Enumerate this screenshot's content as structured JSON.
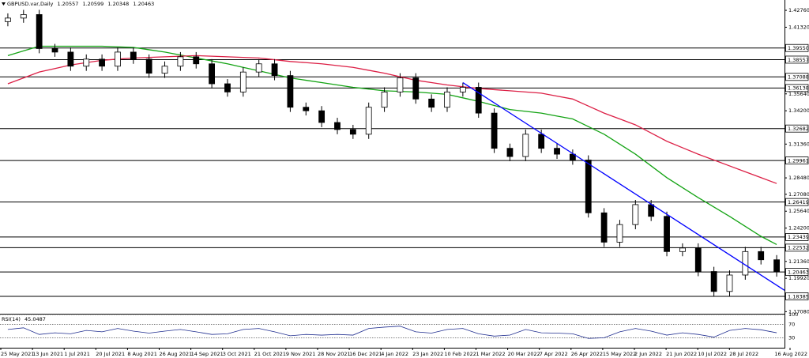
{
  "chart_data": {
    "type": "candlestick",
    "title": "GBPUSD.var,Daily",
    "quote": [
      "1.20557",
      "1.20599",
      "1.20348",
      "1.20463"
    ],
    "open": [
      1.418,
      1.421,
      1.424,
      1.395,
      1.392,
      1.38,
      1.386,
      1.38,
      1.392,
      1.386,
      1.374,
      1.38,
      1.388,
      1.382,
      1.365,
      1.358,
      1.375,
      1.382,
      1.372,
      1.345,
      1.342,
      1.332,
      1.326,
      1.322,
      1.345,
      1.358,
      1.37,
      1.352,
      1.345,
      1.358,
      1.362,
      1.34,
      1.31,
      1.303,
      1.322,
      1.31,
      1.305,
      1.3,
      1.255,
      1.23,
      1.245,
      1.262,
      1.252,
      1.222,
      1.225,
      1.205,
      1.188,
      1.202,
      1.222,
      1.215
    ],
    "high": [
      1.425,
      1.428,
      1.428,
      1.399,
      1.396,
      1.39,
      1.39,
      1.396,
      1.396,
      1.39,
      1.384,
      1.392,
      1.392,
      1.386,
      1.369,
      1.379,
      1.386,
      1.386,
      1.376,
      1.349,
      1.346,
      1.336,
      1.33,
      1.349,
      1.362,
      1.374,
      1.374,
      1.356,
      1.362,
      1.366,
      1.366,
      1.344,
      1.314,
      1.326,
      1.326,
      1.314,
      1.309,
      1.304,
      1.259,
      1.249,
      1.266,
      1.266,
      1.256,
      1.229,
      1.229,
      1.209,
      1.206,
      1.226,
      1.226,
      1.219
    ],
    "low": [
      1.414,
      1.417,
      1.391,
      1.388,
      1.376,
      1.376,
      1.376,
      1.376,
      1.382,
      1.37,
      1.37,
      1.376,
      1.378,
      1.361,
      1.354,
      1.354,
      1.371,
      1.368,
      1.341,
      1.338,
      1.328,
      1.322,
      1.318,
      1.318,
      1.341,
      1.354,
      1.348,
      1.341,
      1.341,
      1.354,
      1.336,
      1.306,
      1.299,
      1.299,
      1.306,
      1.301,
      1.296,
      1.251,
      1.226,
      1.226,
      1.241,
      1.248,
      1.218,
      1.218,
      1.201,
      1.184,
      1.184,
      1.198,
      1.211,
      1.2006
    ],
    "close": [
      1.421,
      1.424,
      1.395,
      1.392,
      1.38,
      1.386,
      1.38,
      1.392,
      1.386,
      1.374,
      1.38,
      1.388,
      1.382,
      1.365,
      1.358,
      1.375,
      1.382,
      1.372,
      1.345,
      1.342,
      1.332,
      1.326,
      1.322,
      1.345,
      1.358,
      1.37,
      1.352,
      1.345,
      1.358,
      1.362,
      1.34,
      1.31,
      1.303,
      1.322,
      1.31,
      1.305,
      1.3,
      1.255,
      1.23,
      1.245,
      1.262,
      1.252,
      1.222,
      1.225,
      1.205,
      1.188,
      1.202,
      1.222,
      1.215,
      1.20463
    ],
    "ylim": [
      1.169,
      1.4364
    ],
    "yticks": [
      {
        "value": 1.4276,
        "label": "1.42760"
      },
      {
        "value": 1.4132,
        "label": "1.41320"
      },
      {
        "value": 1.3564,
        "label": "1.35640"
      },
      {
        "value": 1.342,
        "label": "1.34200"
      },
      {
        "value": 1.3136,
        "label": "1.31360"
      },
      {
        "value": 1.2848,
        "label": "1.28480"
      },
      {
        "value": 1.2708,
        "label": "1.27080"
      },
      {
        "value": 1.2564,
        "label": "1.25640"
      },
      {
        "value": 1.242,
        "label": "1.24200"
      },
      {
        "value": 1.2136,
        "label": "1.21360"
      },
      {
        "value": 1.1992,
        "label": "1.19920"
      },
      {
        "value": 1.1708,
        "label": "1.17080"
      }
    ],
    "levels": [
      {
        "value": 1.3955,
        "label": "1.39550"
      },
      {
        "value": 1.38557,
        "label": "1.38557"
      },
      {
        "value": 1.37088,
        "label": "1.37088"
      },
      {
        "value": 1.36138,
        "label": "1.36138"
      },
      {
        "value": 1.32682,
        "label": "1.32682"
      },
      {
        "value": 1.29961,
        "label": "1.29961"
      },
      {
        "value": 1.26419,
        "label": "1.26419"
      },
      {
        "value": 1.23439,
        "label": "1.23439"
      },
      {
        "value": 1.22532,
        "label": "1.22532"
      },
      {
        "value": 1.20463,
        "label": "1.20463"
      },
      {
        "value": 1.18385,
        "label": "1.18385"
      }
    ],
    "moving_averages": [
      {
        "color": "#13a313",
        "values": [
          1.389,
          1.393,
          1.397,
          1.397,
          1.397,
          1.397,
          1.397,
          1.3965,
          1.396,
          1.394,
          1.392,
          1.3895,
          1.387,
          1.3845,
          1.382,
          1.379,
          1.376,
          1.373,
          1.37,
          1.368,
          1.366,
          1.364,
          1.362,
          1.3605,
          1.359,
          1.3585,
          1.358,
          1.357,
          1.356,
          1.353,
          1.35,
          1.3465,
          1.343,
          1.3415,
          1.34,
          1.3375,
          1.335,
          1.3285,
          1.322,
          1.3135,
          1.305,
          1.295,
          1.285,
          1.2765,
          1.268,
          1.26,
          1.252,
          1.2435,
          1.235,
          1.228
        ]
      },
      {
        "color": "#dc1f45",
        "values": [
          1.365,
          1.37,
          1.375,
          1.378,
          1.381,
          1.383,
          1.385,
          1.386,
          1.387,
          1.3875,
          1.388,
          1.3885,
          1.389,
          1.3885,
          1.388,
          1.3875,
          1.387,
          1.3855,
          1.384,
          1.383,
          1.382,
          1.3805,
          1.379,
          1.3765,
          1.374,
          1.371,
          1.368,
          1.366,
          1.364,
          1.3625,
          1.361,
          1.36,
          1.359,
          1.358,
          1.357,
          1.3545,
          1.352,
          1.346,
          1.34,
          1.335,
          1.33,
          1.323,
          1.316,
          1.3105,
          1.305,
          1.3,
          1.295,
          1.29,
          1.285,
          1.28
        ]
      }
    ],
    "trendline": {
      "color": "#0000ff",
      "values": [
        1.366,
        1.189
      ]
    },
    "rsi": {
      "label": "RSI(14)",
      "color": "#1f2d8f",
      "ylim": [
        0,
        100
      ],
      "yticks": [
        100,
        70,
        30
      ],
      "values": [
        55,
        60,
        40,
        45,
        42,
        52,
        48,
        58,
        50,
        44,
        50,
        55,
        48,
        40,
        42,
        55,
        58,
        48,
        36,
        40,
        38,
        40,
        38,
        58,
        62,
        65,
        48,
        44,
        55,
        58,
        42,
        35,
        38,
        55,
        45,
        44,
        42,
        28,
        30,
        48,
        58,
        50,
        38,
        45,
        40,
        32,
        52,
        58,
        54,
        45.0487
      ]
    },
    "dates": [
      "25 May 2021",
      "13 Jun 2021",
      "1 Jul 2021",
      "20 Jul 2021",
      "8 Aug 2021",
      "26 Aug 2021",
      "14 Sep 2021",
      "3 Oct 2021",
      "21 Oct 2021",
      "9 Nov 2021",
      "28 Nov 2021",
      "16 Dec 2021",
      "4 Jan 2022",
      "23 Jan 2022",
      "10 Feb 2022",
      "1 Mar 2022",
      "20 Mar 2022",
      "7 Apr 2022",
      "26 Apr 2022",
      "15 May 2022",
      "2 Jun 2022",
      "21 Jun 2022",
      "10 Jul 2022",
      "28 Jul 2022",
      "16 Aug 2022"
    ]
  }
}
